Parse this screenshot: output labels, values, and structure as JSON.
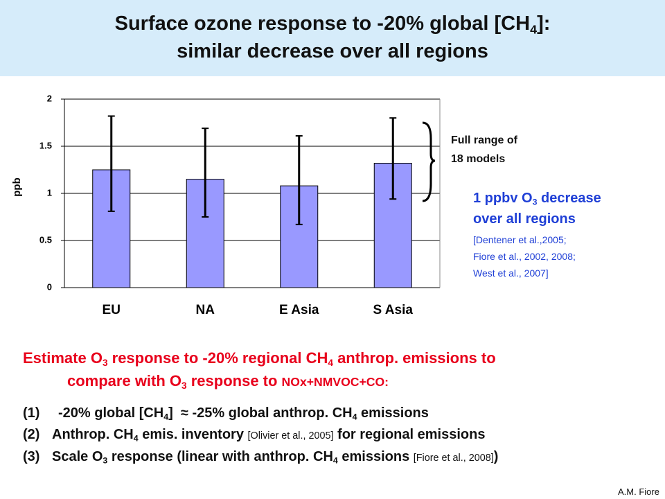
{
  "title": {
    "lines": [
      [
        "Surface ozone response to -20% global [CH",
        {
          "sub": "4"
        },
        "]:"
      ],
      [
        "similar decrease over all regions"
      ]
    ]
  },
  "chart_data": {
    "type": "bar",
    "categories": [
      "EU",
      "NA",
      "E Asia",
      "S Asia"
    ],
    "values": [
      1.25,
      1.15,
      1.08,
      1.32
    ],
    "error_low": [
      0.81,
      0.75,
      0.67,
      0.94
    ],
    "error_high": [
      1.82,
      1.69,
      1.61,
      1.8
    ],
    "color": "#9999ff",
    "ylabel": "ppb",
    "ylim": [
      0,
      2
    ],
    "yticks": [
      0,
      0.5,
      1,
      1.5,
      2
    ],
    "grid": true
  },
  "annotations": {
    "range_note": [
      "Full range of",
      "18 models"
    ],
    "blue_note": [
      [
        "1 ppbv O",
        {
          "sub": "3"
        },
        " decrease"
      ],
      [
        "over all regions"
      ]
    ],
    "references": [
      "[Dentener et al.,2005;",
      "Fiore et al., 2002, 2008;",
      "West et al., 2007]"
    ]
  },
  "body": {
    "intro": [
      [
        "Estimate O",
        {
          "sub": "3"
        },
        " response to -20% regional CH",
        {
          "sub": "4"
        },
        " anthrop. emissions to"
      ],
      [
        "compare with O",
        {
          "sub": "3"
        },
        " response to ",
        {
          "small": "NOx+NMVOC+CO:"
        }
      ]
    ],
    "list": [
      {
        "marker": "(1)",
        "runs": [
          "-20% global [CH",
          {
            "sub": "4"
          },
          "]  ≈ -25% global anthrop. CH",
          {
            "sub": "4"
          },
          " emissions"
        ]
      },
      {
        "marker": "(2)",
        "runs": [
          "Anthrop. CH",
          {
            "sub": "4"
          },
          " emis. inventory ",
          {
            "small": "[Olivier et al., 2005]"
          },
          " for regional emissions"
        ]
      },
      {
        "marker": "(3)",
        "runs": [
          "Scale O",
          {
            "sub": "3"
          },
          " response (linear with anthrop. CH",
          {
            "sub": "4"
          },
          " emissions ",
          {
            "small": "[Fiore et al., 2008]"
          },
          ")"
        ]
      }
    ]
  },
  "credit": "A.M. Fiore"
}
